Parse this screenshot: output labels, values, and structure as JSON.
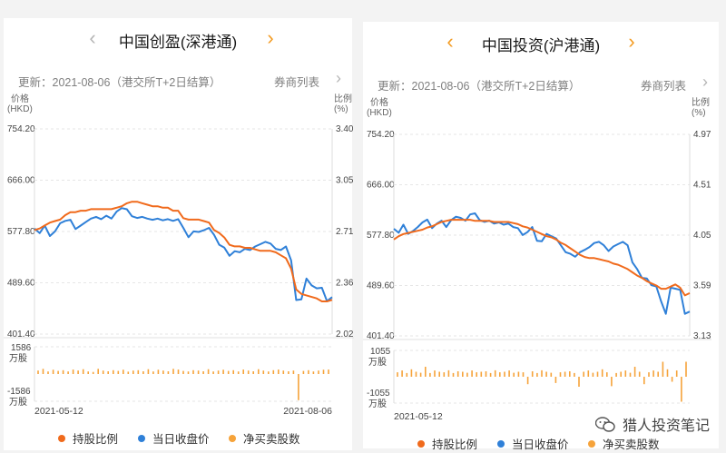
{
  "colors": {
    "holding_ratio": "#f06a1c",
    "close_price": "#2f80d8",
    "net_flow": "#f6a33a"
  },
  "panels": [
    {
      "title": "中国创盈(深港通)",
      "prev_icon": "chevron-left-icon",
      "next_icon": "chevron-right-icon",
      "update_text": "更新：2021-08-06（港交所T+2日结算）",
      "broker_list": "券商列表",
      "chart_data": {
        "type": "line",
        "left_axis_label": [
          "价格",
          "(HKD)"
        ],
        "right_axis_label": [
          "比例",
          "(%)"
        ],
        "left_ticks": [
          "754.20",
          "666.00",
          "577.80",
          "489.60",
          "401.40"
        ],
        "right_ticks": [
          "3.40",
          "3.05",
          "2.71",
          "2.36",
          "2.02"
        ],
        "price_range": [
          401.4,
          754.2
        ],
        "ratio_range": [
          2.02,
          3.4
        ],
        "bar_label_top": [
          "1586",
          "万股"
        ],
        "bar_label_bottom": [
          "-1586",
          "万股"
        ],
        "bar_range": [
          -1586,
          1586
        ],
        "x_start": "2021-05-12",
        "x_end": "2021-08-06",
        "series": [
          {
            "name": "当日收盘价",
            "axis": "left",
            "values": [
              583,
              575,
              588,
              570,
              578,
              592,
              596,
              598,
              582,
              588,
              594,
              600,
              603,
              599,
              605,
              600,
              612,
              618,
              616,
              604,
              601,
              603,
              600,
              598,
              600,
              597,
              599,
              596,
              599,
              584,
              568,
              578,
              577,
              580,
              584,
              572,
              555,
              550,
              536,
              544,
              542,
              548,
              546,
              552,
              556,
              560,
              557,
              548,
              546,
              552,
              528,
              460,
              461,
              497,
              485,
              480,
              481,
              458,
              465
            ]
          },
          {
            "name": "持股比例",
            "axis": "right",
            "values": [
              2.72,
              2.73,
              2.75,
              2.77,
              2.78,
              2.79,
              2.82,
              2.84,
              2.84,
              2.85,
              2.85,
              2.86,
              2.86,
              2.86,
              2.86,
              2.86,
              2.87,
              2.88,
              2.9,
              2.91,
              2.91,
              2.9,
              2.89,
              2.88,
              2.88,
              2.87,
              2.87,
              2.85,
              2.85,
              2.8,
              2.79,
              2.79,
              2.79,
              2.78,
              2.77,
              2.72,
              2.7,
              2.67,
              2.62,
              2.61,
              2.61,
              2.6,
              2.6,
              2.59,
              2.58,
              2.58,
              2.58,
              2.57,
              2.55,
              2.53,
              2.46,
              2.32,
              2.29,
              2.28,
              2.27,
              2.26,
              2.24,
              2.24,
              2.25
            ]
          }
        ],
        "net_flow": [
          200,
          300,
          150,
          250,
          180,
          220,
          150,
          260,
          200,
          280,
          150,
          120,
          300,
          200,
          160,
          220,
          180,
          250,
          140,
          200,
          220,
          160,
          280,
          150,
          250,
          200,
          160,
          300,
          260,
          180,
          150,
          220,
          200,
          160,
          280,
          150,
          200,
          250,
          180,
          220,
          150,
          260,
          200,
          160,
          280,
          200,
          150,
          220,
          260,
          200,
          160,
          200,
          -1520,
          180,
          220,
          150,
          200,
          250,
          260
        ]
      }
    },
    {
      "title": "中国投资(沪港通)",
      "prev_icon": "chevron-left-icon",
      "next_icon": "chevron-right-icon",
      "update_text": "更新：2021-08-06（港交所T+2日结算）",
      "broker_list": "券商列表",
      "chart_data": {
        "type": "line",
        "left_axis_label": [
          "价格",
          "(HKD)"
        ],
        "right_axis_label": [
          "比例",
          "(%)"
        ],
        "left_ticks": [
          "754.20",
          "666.00",
          "577.80",
          "489.60",
          "401.40"
        ],
        "right_ticks": [
          "4.97",
          "4.51",
          "4.05",
          "3.59",
          "3.13"
        ],
        "price_range": [
          401.4,
          754.2
        ],
        "ratio_range": [
          3.13,
          4.97
        ],
        "bar_label_top": [
          "1055",
          "万股"
        ],
        "bar_label_bottom": [
          "-1055",
          "万股"
        ],
        "bar_range": [
          -1055,
          1055
        ],
        "x_start": "2021-05-12",
        "x_end": "",
        "series": [
          {
            "name": "当日收盘价",
            "axis": "left",
            "values": [
              589,
              582,
              596,
              580,
              585,
              592,
              600,
              605,
              590,
              598,
              603,
              592,
              604,
              610,
              608,
              603,
              614,
              616,
              604,
              601,
              603,
              598,
              600,
              596,
              598,
              592,
              590,
              578,
              583,
              592,
              568,
              567,
              580,
              576,
              572,
              560,
              548,
              545,
              540,
              548,
              552,
              557,
              564,
              566,
              560,
              550,
              558,
              562,
              566,
              560,
              530,
              518,
              503,
              502,
              490,
              488,
              462,
              440,
              486,
              484,
              482,
              440,
              444
            ]
          },
          {
            "name": "持股比例",
            "axis": "right",
            "values": [
              4.01,
              4.04,
              4.06,
              4.07,
              4.08,
              4.09,
              4.1,
              4.12,
              4.13,
              4.15,
              4.17,
              4.18,
              4.19,
              4.19,
              4.19,
              4.19,
              4.19,
              4.18,
              4.18,
              4.18,
              4.18,
              4.17,
              4.17,
              4.17,
              4.17,
              4.16,
              4.15,
              4.13,
              4.12,
              4.1,
              4.08,
              4.06,
              4.04,
              4.03,
              4.01,
              3.98,
              3.96,
              3.93,
              3.9,
              3.87,
              3.85,
              3.84,
              3.84,
              3.83,
              3.82,
              3.81,
              3.79,
              3.78,
              3.76,
              3.74,
              3.71,
              3.68,
              3.66,
              3.63,
              3.61,
              3.59,
              3.56,
              3.56,
              3.58,
              3.6,
              3.57,
              3.5,
              3.52
            ]
          }
        ],
        "net_flow": [
          180,
          250,
          150,
          300,
          200,
          160,
          400,
          150,
          250,
          200,
          180,
          260,
          150,
          220,
          200,
          160,
          250,
          180,
          200,
          220,
          150,
          260,
          180,
          200,
          250,
          160,
          200,
          180,
          -300,
          220,
          150,
          260,
          200,
          160,
          -250,
          180,
          200,
          220,
          150,
          -400,
          200,
          250,
          160,
          200,
          300,
          180,
          -380,
          150,
          200,
          250,
          160,
          400,
          200,
          -300,
          180,
          250,
          200,
          600,
          300,
          -200,
          250,
          -1000,
          600
        ]
      }
    }
  ],
  "legend": [
    {
      "label": "持股比例",
      "color_key": "holding_ratio"
    },
    {
      "label": "当日收盘价",
      "color_key": "close_price"
    },
    {
      "label": "净买卖股数",
      "color_key": "net_flow"
    }
  ],
  "watermark": "猎人投资笔记"
}
